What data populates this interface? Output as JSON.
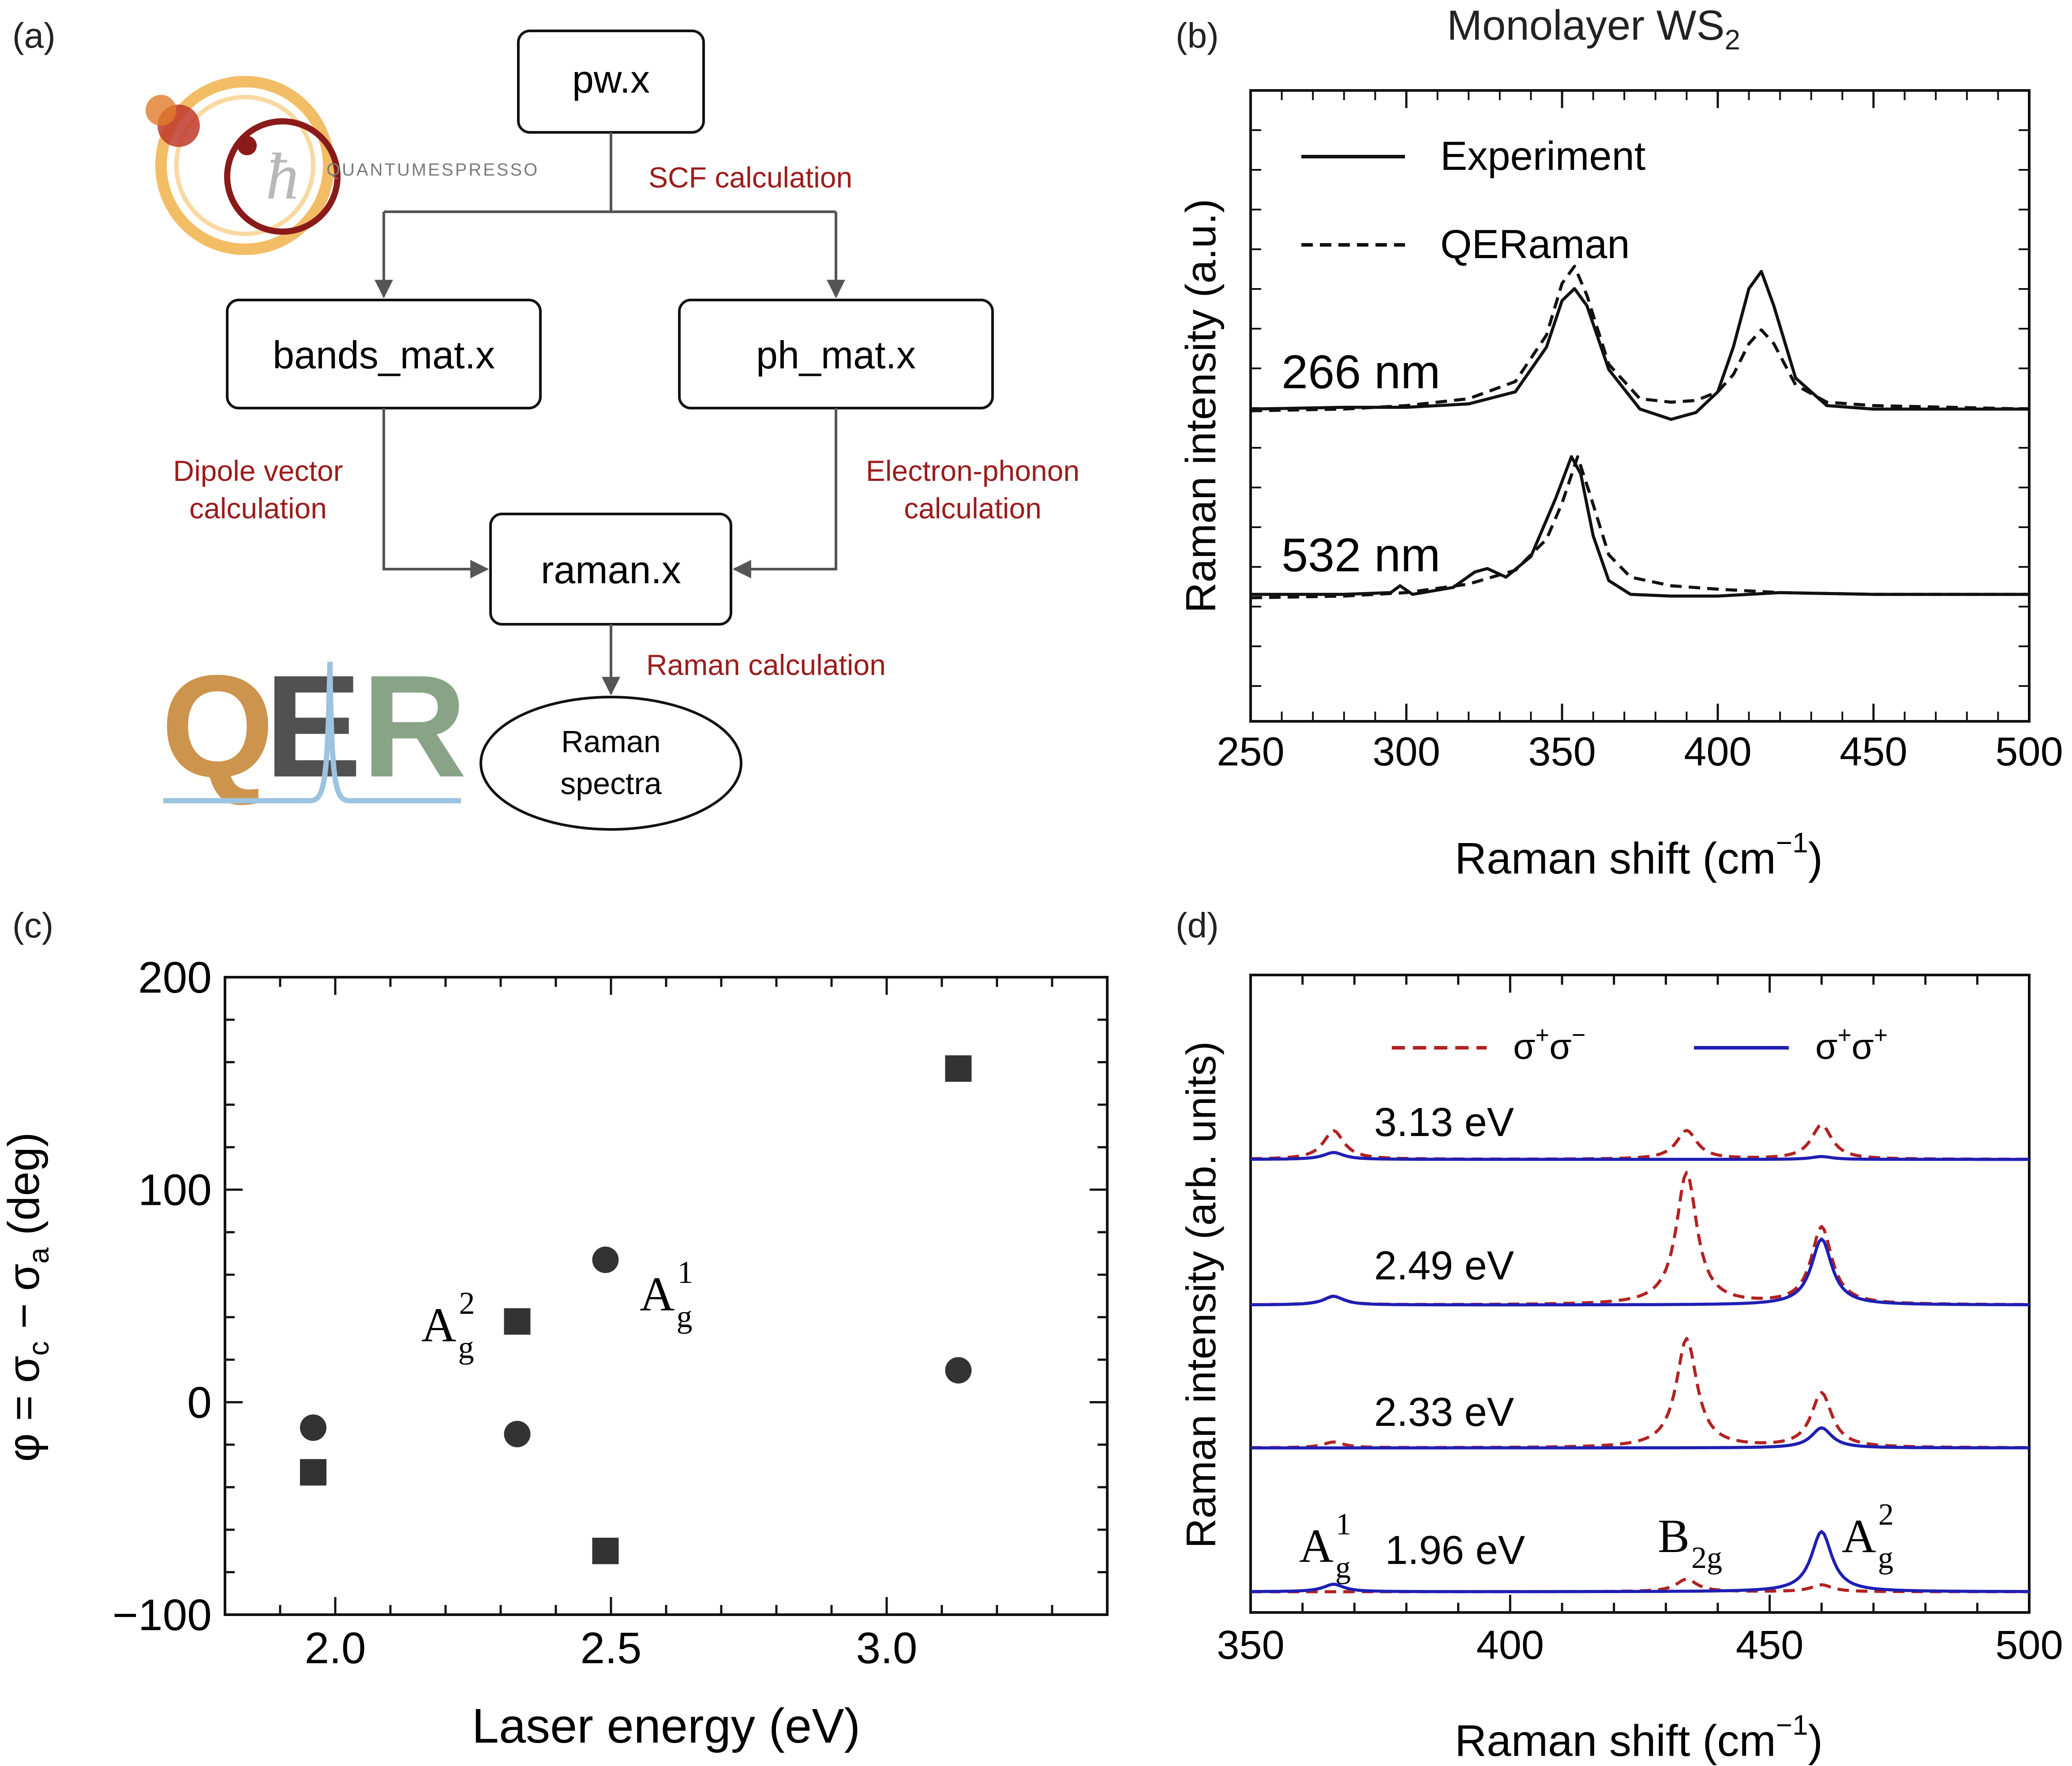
{
  "panel_a": {
    "label": "(a)",
    "qe_logo_text": "QUANTUMESPRESSO",
    "qer_logo_text": "QER",
    "nodes": {
      "pw": "pw.x",
      "bands": "bands_mat.x",
      "ph": "ph_mat.x",
      "raman": "raman.x",
      "spectra_line1": "Raman",
      "spectra_line2": "spectra"
    },
    "edges": {
      "scf": "SCF calculation",
      "dipole_line1": "Dipole vector",
      "dipole_line2": "calculation",
      "eph_line1": "Electron-phonon",
      "eph_line2": "calculation",
      "raman_calc": "Raman calculation"
    },
    "colors": {
      "edge_text": "#9b1c1c",
      "arrow": "#555555",
      "qe_logo": "#e8a33a",
      "qe_logo_dark": "#8b1a1a"
    }
  },
  "panel_b": {
    "label": "(b)",
    "chart_data": {
      "type": "line",
      "title": "Monolayer WS",
      "title_sub": "2",
      "xlabel": "Raman shift (cm",
      "xlabel_sup": "−1",
      "xlabel_close": ")",
      "ylabel": "Raman intensity (a.u.)",
      "xlim": [
        250,
        500
      ],
      "xticks": [
        "250",
        "300",
        "350",
        "400",
        "450",
        "500"
      ],
      "legend": {
        "placement": "top-left",
        "entries": [
          "Experiment",
          "QERaman"
        ]
      },
      "groups": [
        {
          "label": "266 nm",
          "series": [
            {
              "name": "Experiment",
              "style": "solid",
              "x": [
                250,
                280,
                300,
                320,
                335,
                345,
                350,
                354,
                358,
                365,
                375,
                385,
                393,
                400,
                405,
                410,
                414,
                418,
                425,
                435,
                450,
                500
              ],
              "y": [
                0.02,
                0.03,
                0.03,
                0.05,
                0.12,
                0.38,
                0.65,
                0.72,
                0.62,
                0.25,
                0.02,
                -0.04,
                0.0,
                0.12,
                0.38,
                0.72,
                0.82,
                0.62,
                0.2,
                0.04,
                0.02,
                0.02
              ]
            },
            {
              "name": "QERaman",
              "style": "dashed",
              "x": [
                250,
                280,
                300,
                320,
                335,
                345,
                350,
                354,
                358,
                365,
                375,
                385,
                393,
                400,
                405,
                410,
                414,
                418,
                425,
                435,
                450,
                500
              ],
              "y": [
                0.01,
                0.02,
                0.04,
                0.08,
                0.18,
                0.45,
                0.75,
                0.85,
                0.68,
                0.28,
                0.08,
                0.06,
                0.07,
                0.12,
                0.22,
                0.4,
                0.48,
                0.4,
                0.16,
                0.06,
                0.04,
                0.02
              ]
            }
          ]
        },
        {
          "label": "532 nm",
          "series": [
            {
              "name": "Experiment",
              "style": "solid",
              "x": [
                250,
                280,
                295,
                298,
                302,
                315,
                322,
                326,
                332,
                340,
                348,
                353,
                356,
                360,
                365,
                372,
                385,
                400,
                420,
                450,
                500
              ],
              "y": [
                0.02,
                0.02,
                0.03,
                0.07,
                0.02,
                0.06,
                0.15,
                0.17,
                0.12,
                0.24,
                0.58,
                0.82,
                0.72,
                0.36,
                0.1,
                0.02,
                0.01,
                0.01,
                0.03,
                0.02,
                0.02
              ]
            },
            {
              "name": "QERaman",
              "style": "dashed",
              "x": [
                250,
                280,
                300,
                320,
                335,
                345,
                350,
                355,
                359,
                365,
                372,
                385,
                400,
                420,
                450,
                500
              ],
              "y": [
                0.0,
                0.01,
                0.03,
                0.08,
                0.16,
                0.34,
                0.55,
                0.82,
                0.6,
                0.25,
                0.12,
                0.07,
                0.05,
                0.03,
                0.02,
                0.02
              ]
            }
          ]
        }
      ]
    }
  },
  "panel_c": {
    "label": "(c)",
    "chart_data": {
      "type": "scatter",
      "xlabel": "Laser energy (eV)",
      "ylabel_parts": [
        "φ = σ",
        "c",
        " − σ",
        "a",
        " (deg)"
      ],
      "xlim": [
        1.8,
        3.4
      ],
      "ylim": [
        -100,
        200
      ],
      "xticks": [
        "2.0",
        "2.5",
        "3.0"
      ],
      "yticks": [
        "−100",
        "0",
        "100",
        "200"
      ],
      "series": [
        {
          "name": "A1g",
          "marker": "circle",
          "x": [
            1.96,
            2.33,
            2.49,
            3.13
          ],
          "y": [
            -12,
            -15,
            67,
            15
          ]
        },
        {
          "name": "A2g",
          "marker": "square",
          "x": [
            1.96,
            2.33,
            2.49,
            3.13
          ],
          "y": [
            -33,
            38,
            -70,
            157
          ]
        }
      ],
      "annotations": [
        {
          "base": "A",
          "sub": "g",
          "sup": "1"
        },
        {
          "base": "A",
          "sub": "g",
          "sup": "2"
        }
      ]
    }
  },
  "panel_d": {
    "label": "(d)",
    "chart_data": {
      "type": "line",
      "xlabel": "Raman shift (cm",
      "xlabel_sup": "−1",
      "xlabel_close": ")",
      "ylabel": "Raman intensity (arb. units)",
      "xlim": [
        350,
        500
      ],
      "xticks": [
        "350",
        "400",
        "450",
        "500"
      ],
      "legend": {
        "placement": "top",
        "entries": [
          {
            "base1": "σ",
            "sup1": "+",
            "base2": "σ",
            "sup2": "−",
            "style": "dashed",
            "color": "#b22222"
          },
          {
            "base1": "σ",
            "sup1": "+",
            "base2": "σ",
            "sup2": "+",
            "style": "solid",
            "color": "#1f1fb4"
          }
        ]
      },
      "peak_positions": [
        366,
        434,
        460
      ],
      "peak_labels": [
        {
          "base": "A",
          "sub": "g",
          "sup": "1"
        },
        {
          "base": "B",
          "sub": "2g",
          "sup": ""
        },
        {
          "base": "A",
          "sub": "g",
          "sup": "2"
        }
      ],
      "traces": [
        {
          "label": "3.13 eV",
          "cross": [
            0.5,
            0.5,
            0.6
          ],
          "co": [
            0.12,
            0.0,
            0.05
          ]
        },
        {
          "label": "2.49 eV",
          "cross": [
            0.15,
            2.3,
            1.35
          ],
          "co": [
            0.15,
            0.0,
            1.15
          ]
        },
        {
          "label": "2.33 eV",
          "cross": [
            0.1,
            1.9,
            0.95
          ],
          "co": [
            0.0,
            0.0,
            0.35
          ]
        },
        {
          "label": "1.96 eV",
          "cross": [
            0.0,
            0.22,
            0.12
          ],
          "co": [
            0.13,
            0.0,
            1.05
          ]
        }
      ],
      "colors": {
        "cross": "#b22222",
        "co": "#1f1fb4"
      }
    }
  }
}
